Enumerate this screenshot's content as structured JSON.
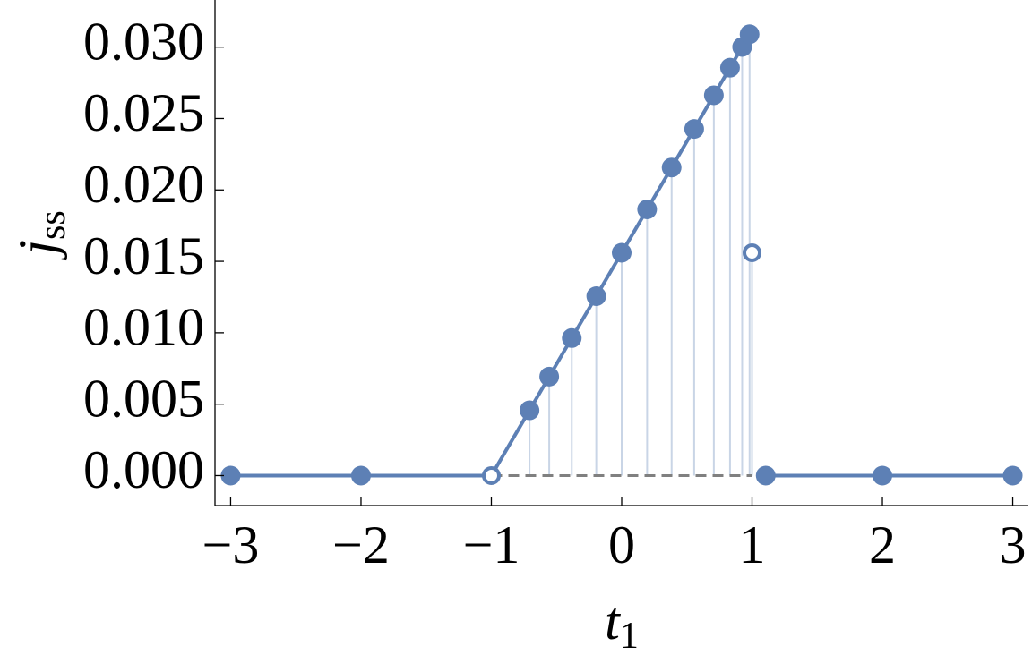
{
  "chart_data": {
    "type": "line",
    "xlabel": "t",
    "xlabel_sub": "1",
    "ylabel": "j",
    "ylabel_sub": "ss",
    "xlim": [
      -3.12,
      3.12
    ],
    "ylim": [
      -0.0021,
      0.0333
    ],
    "xticks": [
      {
        "value": -3,
        "label": "−3"
      },
      {
        "value": -2,
        "label": "−2"
      },
      {
        "value": -1,
        "label": "−1"
      },
      0,
      1,
      2,
      3
    ],
    "yticks": [
      {
        "value": 0,
        "label": "0.000"
      },
      {
        "value": 0.005,
        "label": "0.005"
      },
      {
        "value": 0.01,
        "label": "0.010"
      },
      {
        "value": 0.015,
        "label": "0.015"
      },
      {
        "value": 0.02,
        "label": "0.020"
      },
      {
        "value": 0.025,
        "label": "0.025"
      },
      {
        "value": 0.03,
        "label": "0.030"
      }
    ],
    "series": [
      {
        "style": "dashed",
        "color": "#808080",
        "x": [
          -1,
          1
        ],
        "values": [
          0,
          0
        ]
      },
      {
        "style": "line",
        "color": "#5d80b5",
        "x": [
          -3,
          -2,
          -1,
          -0.707,
          -0.556,
          -0.383,
          -0.195,
          0,
          0.195,
          0.383,
          0.556,
          0.707,
          0.831,
          0.924,
          0.981,
          null,
          1.105,
          2,
          3
        ],
        "values": [
          0,
          0,
          0,
          0.00457,
          0.00693,
          0.00963,
          0.01256,
          0.0156,
          0.01864,
          0.02157,
          0.02427,
          0.02663,
          0.02856,
          0.03001,
          0.0309,
          null,
          0,
          0,
          0
        ]
      },
      {
        "style": "marker-filled",
        "color": "#5d80b5",
        "stems": true,
        "stem_color": "#c9d5e6",
        "x": [
          -3,
          -2,
          -0.707,
          -0.556,
          -0.383,
          -0.195,
          0,
          0.195,
          0.383,
          0.556,
          0.707,
          0.831,
          0.924,
          0.981,
          1.105,
          2,
          3
        ],
        "values": [
          0,
          0,
          0.00457,
          0.00693,
          0.00963,
          0.01256,
          0.0156,
          0.01864,
          0.02157,
          0.02427,
          0.02663,
          0.02856,
          0.03001,
          0.0309,
          0,
          0,
          0
        ]
      },
      {
        "style": "marker-open",
        "color": "#5d80b5",
        "stems": true,
        "stem_color": "#c9d5e6",
        "x": [
          -1,
          1
        ],
        "values": [
          0,
          0.0156
        ]
      }
    ]
  }
}
